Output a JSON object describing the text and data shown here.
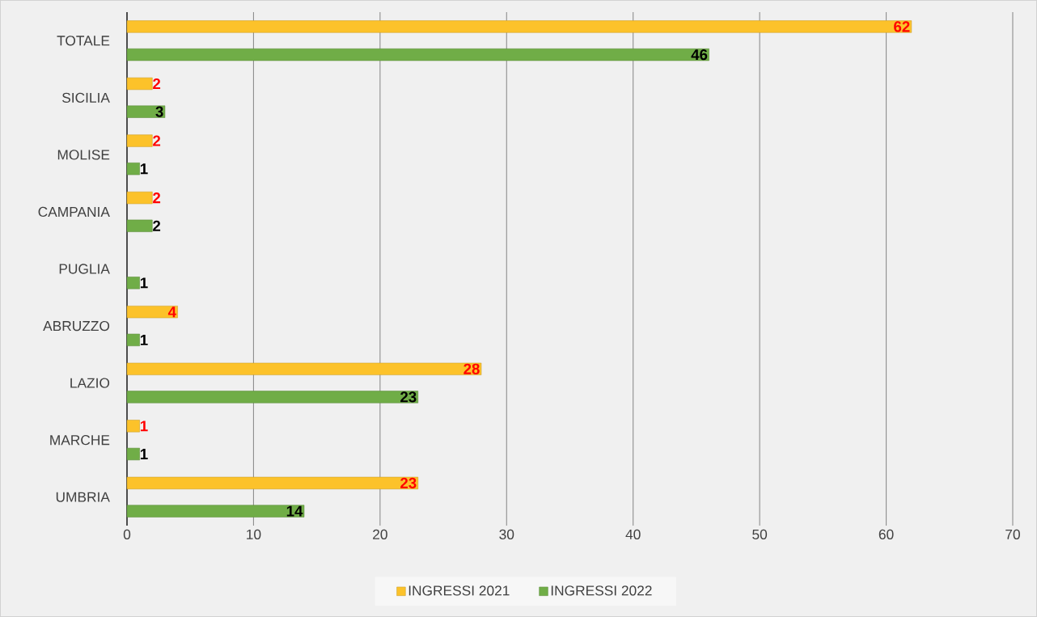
{
  "chart_data": {
    "type": "bar",
    "orientation": "horizontal",
    "categories": [
      "TOTALE",
      "SICILIA",
      "MOLISE",
      "CAMPANIA",
      "PUGLIA",
      "ABRUZZO",
      "LAZIO",
      "MARCHE",
      "UMBRIA"
    ],
    "series": [
      {
        "name": "INGRESSI 2021",
        "color": "#fcc22a",
        "values": [
          62,
          2,
          2,
          2,
          null,
          4,
          28,
          1,
          23
        ]
      },
      {
        "name": "INGRESSI 2022",
        "color": "#70ad47",
        "values": [
          46,
          3,
          1,
          2,
          1,
          1,
          23,
          1,
          14
        ]
      }
    ],
    "xlim": [
      0,
      70
    ],
    "xticks": [
      0,
      10,
      20,
      30,
      40,
      50,
      60,
      70
    ],
    "grid": "x",
    "legend": "bottom",
    "data_labels": true
  }
}
